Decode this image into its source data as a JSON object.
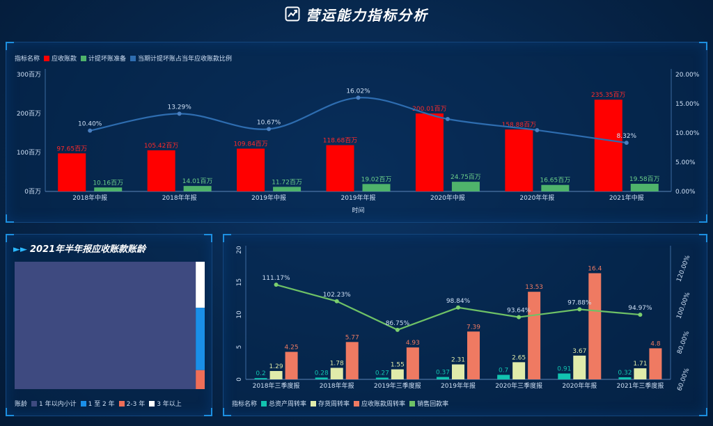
{
  "page": {
    "title": "营运能力指标分析"
  },
  "top": {
    "legend_label": "指标名称",
    "chart_data": {
      "type": "bar",
      "categories": [
        "2018年中报",
        "2018年年报",
        "2019年中报",
        "2019年年报",
        "2020年中报",
        "2020年年报",
        "2021年中报"
      ],
      "series": [
        {
          "name": "应收账款",
          "values": [
            97.65,
            105.42,
            109.84,
            118.68,
            200.01,
            158.88,
            235.35
          ],
          "labels": [
            "97.65百万",
            "105.42百万",
            "109.84百万",
            "118.68百万",
            "200.01百万",
            "158.88百万",
            "235.35百万"
          ],
          "color": "#ff0000"
        },
        {
          "name": "计提坏账准备",
          "values": [
            10.16,
            14.01,
            11.72,
            19.02,
            24.75,
            16.65,
            19.58
          ],
          "labels": [
            "10.16百万",
            "14.01百万",
            "11.72百万",
            "19.02百万",
            "24.75百万",
            "16.65百万",
            "19.58百万"
          ],
          "color": "#4fb36b"
        },
        {
          "name": "当期计提坏账占当年应收账款比例",
          "values": [
            10.4,
            13.29,
            10.67,
            16.02,
            12.38,
            10.48,
            8.32
          ],
          "labels": [
            "10.40%",
            "13.29%",
            "10.67%",
            "16.02%",
            "",
            "",
            "8.32%"
          ],
          "color": "#2e6db0",
          "axis": "right"
        }
      ],
      "xlabel": "时间",
      "ylim": [
        0,
        300
      ],
      "y_ticks": [
        "0百万",
        "100百万",
        "200百万",
        "300百万"
      ],
      "y_tick_values": [
        0,
        100,
        200,
        300
      ],
      "y2lim": [
        0,
        20
      ],
      "y2_ticks": [
        "0.00%",
        "5.00%",
        "10.00%",
        "15.00%",
        "20.00%"
      ],
      "y2_tick_values": [
        0,
        5,
        10,
        15,
        20
      ]
    }
  },
  "left": {
    "title": "2021年半年报应收账款账龄",
    "legend_label": "账龄",
    "chart_data": {
      "type": "treemap",
      "items": [
        {
          "name": "1 年以内小计",
          "value": 95.3,
          "color": "#3e4a80"
        },
        {
          "name": "1 至 2 年",
          "value": 2.3,
          "color": "#1a8fe8"
        },
        {
          "name": "2-3 年",
          "value": 0.7,
          "color": "#ef6e58"
        },
        {
          "name": "3 年以上",
          "value": 1.7,
          "color": "#ffffff"
        }
      ]
    }
  },
  "right": {
    "legend_label": "指标名称",
    "chart_data": {
      "type": "bar",
      "categories": [
        "2018年三季度报",
        "2018年年报",
        "2019年三季度报",
        "2019年年报",
        "2020年三季度报",
        "2020年年报",
        "2021年三季度报"
      ],
      "series": [
        {
          "name": "总资产周转率",
          "values": [
            0.2,
            0.28,
            0.27,
            0.37,
            0.7,
            0.91,
            0.32
          ],
          "labels": [
            "0.2",
            "0.28",
            "0.27",
            "0.37",
            "0.7",
            "0.91",
            "0.32"
          ],
          "color": "#12c3b0"
        },
        {
          "name": "存货周转率",
          "values": [
            1.29,
            1.78,
            1.55,
            2.31,
            2.65,
            3.67,
            1.71
          ],
          "labels": [
            "1.29",
            "1.78",
            "1.55",
            "2.31",
            "2.65",
            "3.67",
            "1.71"
          ],
          "color": "#e0ebaa"
        },
        {
          "name": "应收账款周转率",
          "values": [
            4.25,
            5.77,
            4.93,
            7.39,
            13.53,
            16.4,
            4.8
          ],
          "labels": [
            "4.25",
            "5.77",
            "4.93",
            "7.39",
            "13.53",
            "16.4",
            "4.8"
          ],
          "color": "#ef7a62"
        },
        {
          "name": "销售回款率",
          "values": [
            111.17,
            102.23,
            86.75,
            98.84,
            93.64,
            97.88,
            94.97
          ],
          "labels": [
            "111.17%",
            "102.23%",
            "86.75%",
            "98.84%",
            "93.64%",
            "97.88%",
            "94.97%"
          ],
          "color": "#6fc266",
          "axis": "right"
        }
      ],
      "ylim": [
        0,
        20
      ],
      "y_ticks": [
        "0",
        "5",
        "10",
        "15",
        "20"
      ],
      "y_tick_values": [
        0,
        5,
        10,
        15,
        20
      ],
      "y2lim": [
        60,
        130
      ],
      "y2_ticks": [
        "60.00%",
        "80.00%",
        "100.00%",
        "120.00%"
      ],
      "y2_tick_values": [
        60,
        80,
        100,
        120
      ]
    }
  }
}
